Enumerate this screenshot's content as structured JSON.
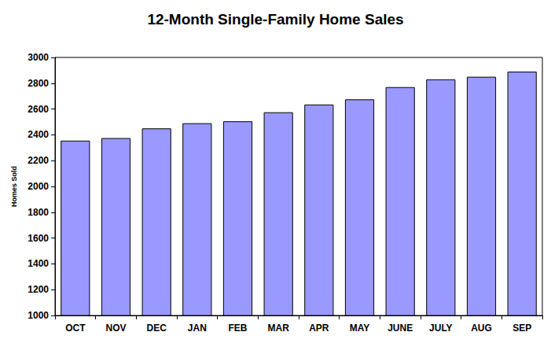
{
  "chart_data": {
    "type": "bar",
    "title": "12-Month Single-Family Home Sales",
    "ylabel": "Homes Sold",
    "categories": [
      "OCT",
      "NOV",
      "DEC",
      "JAN",
      "FEB",
      "MAR",
      "APR",
      "MAY",
      "JUNE",
      "JULY",
      "AUG",
      "SEP"
    ],
    "values": [
      2355,
      2375,
      2450,
      2490,
      2505,
      2575,
      2635,
      2675,
      2770,
      2830,
      2850,
      2890
    ],
    "color": "#9999ff",
    "ylim": [
      1000,
      3000
    ],
    "yticks": [
      1000,
      1200,
      1400,
      1600,
      1800,
      2000,
      2200,
      2400,
      2600,
      2800,
      3000
    ],
    "grid": false
  }
}
